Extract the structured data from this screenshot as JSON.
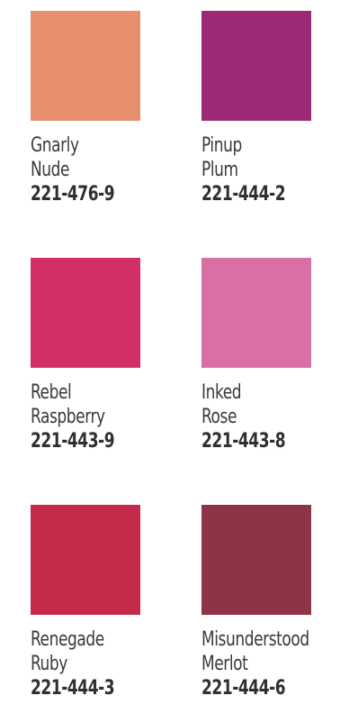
{
  "swatches": [
    {
      "name_line1": "Gnarly",
      "name_line2": "Nude",
      "code": "221-476-9",
      "color": "#E8906D"
    },
    {
      "name_line1": "Pinup",
      "name_line2": "Plum",
      "code": "221-444-2",
      "color": "#9C2A76"
    },
    {
      "name_line1": "Rebel",
      "name_line2": "Raspberry",
      "code": "221-443-9",
      "color": "#D32F67"
    },
    {
      "name_line1": "Inked",
      "name_line2": "Rose",
      "code": "221-443-8",
      "color": "#D870A5"
    },
    {
      "name_line1": "Renegade",
      "name_line2": "Ruby",
      "code": "221-444-3",
      "color": "#C42A4A"
    },
    {
      "name_line1": "Misunderstood",
      "name_line2": "Merlot",
      "code": "221-444-6",
      "color": "#8E3447"
    }
  ]
}
